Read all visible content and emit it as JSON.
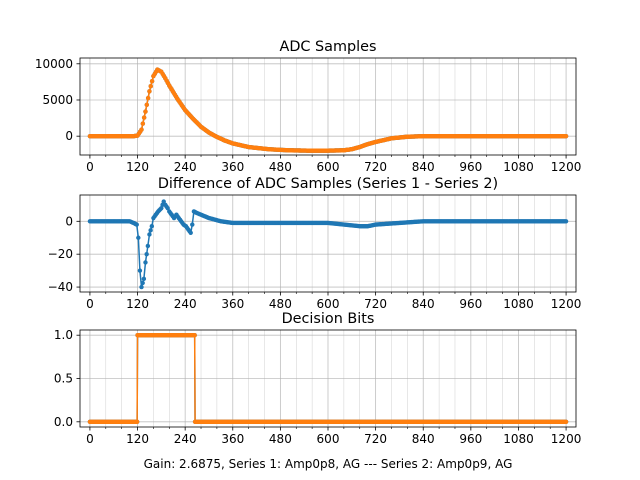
{
  "footer": "Gain: 2.6875, Series 1: Amp0p8, AG --- Series 2: Amp0p9, AG",
  "colors": {
    "series1": "#1f77b4",
    "series2": "#ff7f0e",
    "grid": "#b0b0b0"
  },
  "chart_data": [
    {
      "type": "line",
      "title": "ADC Samples",
      "xlim": [
        -25,
        1225
      ],
      "ylim": [
        -2600,
        10800
      ],
      "x_ticks": [
        0,
        120,
        240,
        360,
        480,
        600,
        720,
        840,
        960,
        1080,
        1200
      ],
      "y_ticks": [
        0,
        5000,
        10000
      ],
      "x_minor_step": 40,
      "grid": true,
      "series": [
        {
          "name": "Series 1",
          "color": "#1f77b4",
          "points": [
            [
              0,
              0
            ],
            [
              110,
              0
            ],
            [
              120,
              80
            ],
            [
              130,
              900
            ],
            [
              140,
              3400
            ],
            [
              150,
              6200
            ],
            [
              160,
              8300
            ],
            [
              170,
              9200
            ],
            [
              180,
              8900
            ],
            [
              190,
              8000
            ],
            [
              200,
              7000
            ],
            [
              220,
              5200
            ],
            [
              240,
              3600
            ],
            [
              260,
              2400
            ],
            [
              280,
              1300
            ],
            [
              300,
              500
            ],
            [
              320,
              -100
            ],
            [
              340,
              -600
            ],
            [
              360,
              -1000
            ],
            [
              400,
              -1500
            ],
            [
              450,
              -1800
            ],
            [
              500,
              -1950
            ],
            [
              550,
              -2000
            ],
            [
              600,
              -2000
            ],
            [
              640,
              -1950
            ],
            [
              660,
              -1800
            ],
            [
              680,
              -1500
            ],
            [
              700,
              -1100
            ],
            [
              720,
              -800
            ],
            [
              760,
              -300
            ],
            [
              800,
              -80
            ],
            [
              840,
              0
            ],
            [
              1200,
              0
            ]
          ]
        },
        {
          "name": "Series 2",
          "color": "#ff7f0e",
          "points": [
            [
              0,
              0
            ],
            [
              110,
              0
            ],
            [
              120,
              80
            ],
            [
              130,
              900
            ],
            [
              140,
              3400
            ],
            [
              150,
              6200
            ],
            [
              160,
              8300
            ],
            [
              170,
              9200
            ],
            [
              180,
              8900
            ],
            [
              190,
              8000
            ],
            [
              200,
              7000
            ],
            [
              220,
              5200
            ],
            [
              240,
              3600
            ],
            [
              260,
              2400
            ],
            [
              280,
              1300
            ],
            [
              300,
              500
            ],
            [
              320,
              -100
            ],
            [
              340,
              -600
            ],
            [
              360,
              -1000
            ],
            [
              400,
              -1500
            ],
            [
              450,
              -1800
            ],
            [
              500,
              -1950
            ],
            [
              550,
              -2000
            ],
            [
              600,
              -2000
            ],
            [
              640,
              -1950
            ],
            [
              660,
              -1800
            ],
            [
              680,
              -1500
            ],
            [
              700,
              -1100
            ],
            [
              720,
              -800
            ],
            [
              760,
              -300
            ],
            [
              800,
              -80
            ],
            [
              840,
              0
            ],
            [
              1200,
              0
            ]
          ]
        }
      ]
    },
    {
      "type": "line",
      "title": "Difference of ADC Samples (Series 1 - Series 2)",
      "xlim": [
        -25,
        1225
      ],
      "ylim": [
        -43,
        16
      ],
      "x_ticks": [
        0,
        120,
        240,
        360,
        480,
        600,
        720,
        840,
        960,
        1080,
        1200
      ],
      "y_ticks": [
        -40,
        -20,
        0
      ],
      "x_minor_step": 40,
      "grid": true,
      "series": [
        {
          "name": "Series 1 - Series 2",
          "color": "#1f77b4",
          "points": [
            [
              0,
              0
            ],
            [
              100,
              0
            ],
            [
              110,
              -1
            ],
            [
              118,
              -2
            ],
            [
              122,
              -10
            ],
            [
              126,
              -30
            ],
            [
              130,
              -40
            ],
            [
              136,
              -35
            ],
            [
              140,
              -25
            ],
            [
              146,
              -15
            ],
            [
              150,
              -8
            ],
            [
              156,
              -3
            ],
            [
              160,
              2
            ],
            [
              166,
              4
            ],
            [
              172,
              6
            ],
            [
              180,
              8
            ],
            [
              186,
              12
            ],
            [
              190,
              10
            ],
            [
              196,
              8
            ],
            [
              200,
              6
            ],
            [
              206,
              4
            ],
            [
              212,
              2
            ],
            [
              218,
              4
            ],
            [
              224,
              2
            ],
            [
              230,
              0
            ],
            [
              236,
              -2
            ],
            [
              242,
              -3
            ],
            [
              248,
              -5
            ],
            [
              254,
              -7
            ],
            [
              258,
              -2
            ],
            [
              262,
              6
            ],
            [
              270,
              5
            ],
            [
              280,
              4
            ],
            [
              300,
              2
            ],
            [
              330,
              0
            ],
            [
              360,
              -1
            ],
            [
              420,
              -1
            ],
            [
              480,
              -1
            ],
            [
              540,
              -1
            ],
            [
              600,
              -1
            ],
            [
              640,
              -2
            ],
            [
              680,
              -3
            ],
            [
              700,
              -3
            ],
            [
              720,
              -2
            ],
            [
              780,
              -1
            ],
            [
              840,
              0
            ],
            [
              960,
              0
            ],
            [
              1080,
              0
            ],
            [
              1200,
              0
            ]
          ]
        }
      ]
    },
    {
      "type": "line",
      "title": "Decision Bits",
      "xlim": [
        -25,
        1225
      ],
      "ylim": [
        -0.06,
        1.06
      ],
      "x_ticks": [
        0,
        120,
        240,
        360,
        480,
        600,
        720,
        840,
        960,
        1080,
        1200
      ],
      "y_ticks": [
        0.0,
        0.5,
        1.0
      ],
      "x_minor_step": 40,
      "grid": true,
      "series": [
        {
          "name": "Series 1",
          "color": "#1f77b4",
          "points": [
            [
              0,
              0
            ],
            [
              119,
              0
            ],
            [
              120,
              1
            ],
            [
              264,
              1
            ],
            [
              265,
              0
            ],
            [
              1200,
              0
            ]
          ]
        },
        {
          "name": "Series 2",
          "color": "#ff7f0e",
          "points": [
            [
              0,
              0
            ],
            [
              119,
              0
            ],
            [
              120,
              1
            ],
            [
              264,
              1
            ],
            [
              265,
              0
            ],
            [
              1200,
              0
            ]
          ]
        }
      ]
    }
  ]
}
